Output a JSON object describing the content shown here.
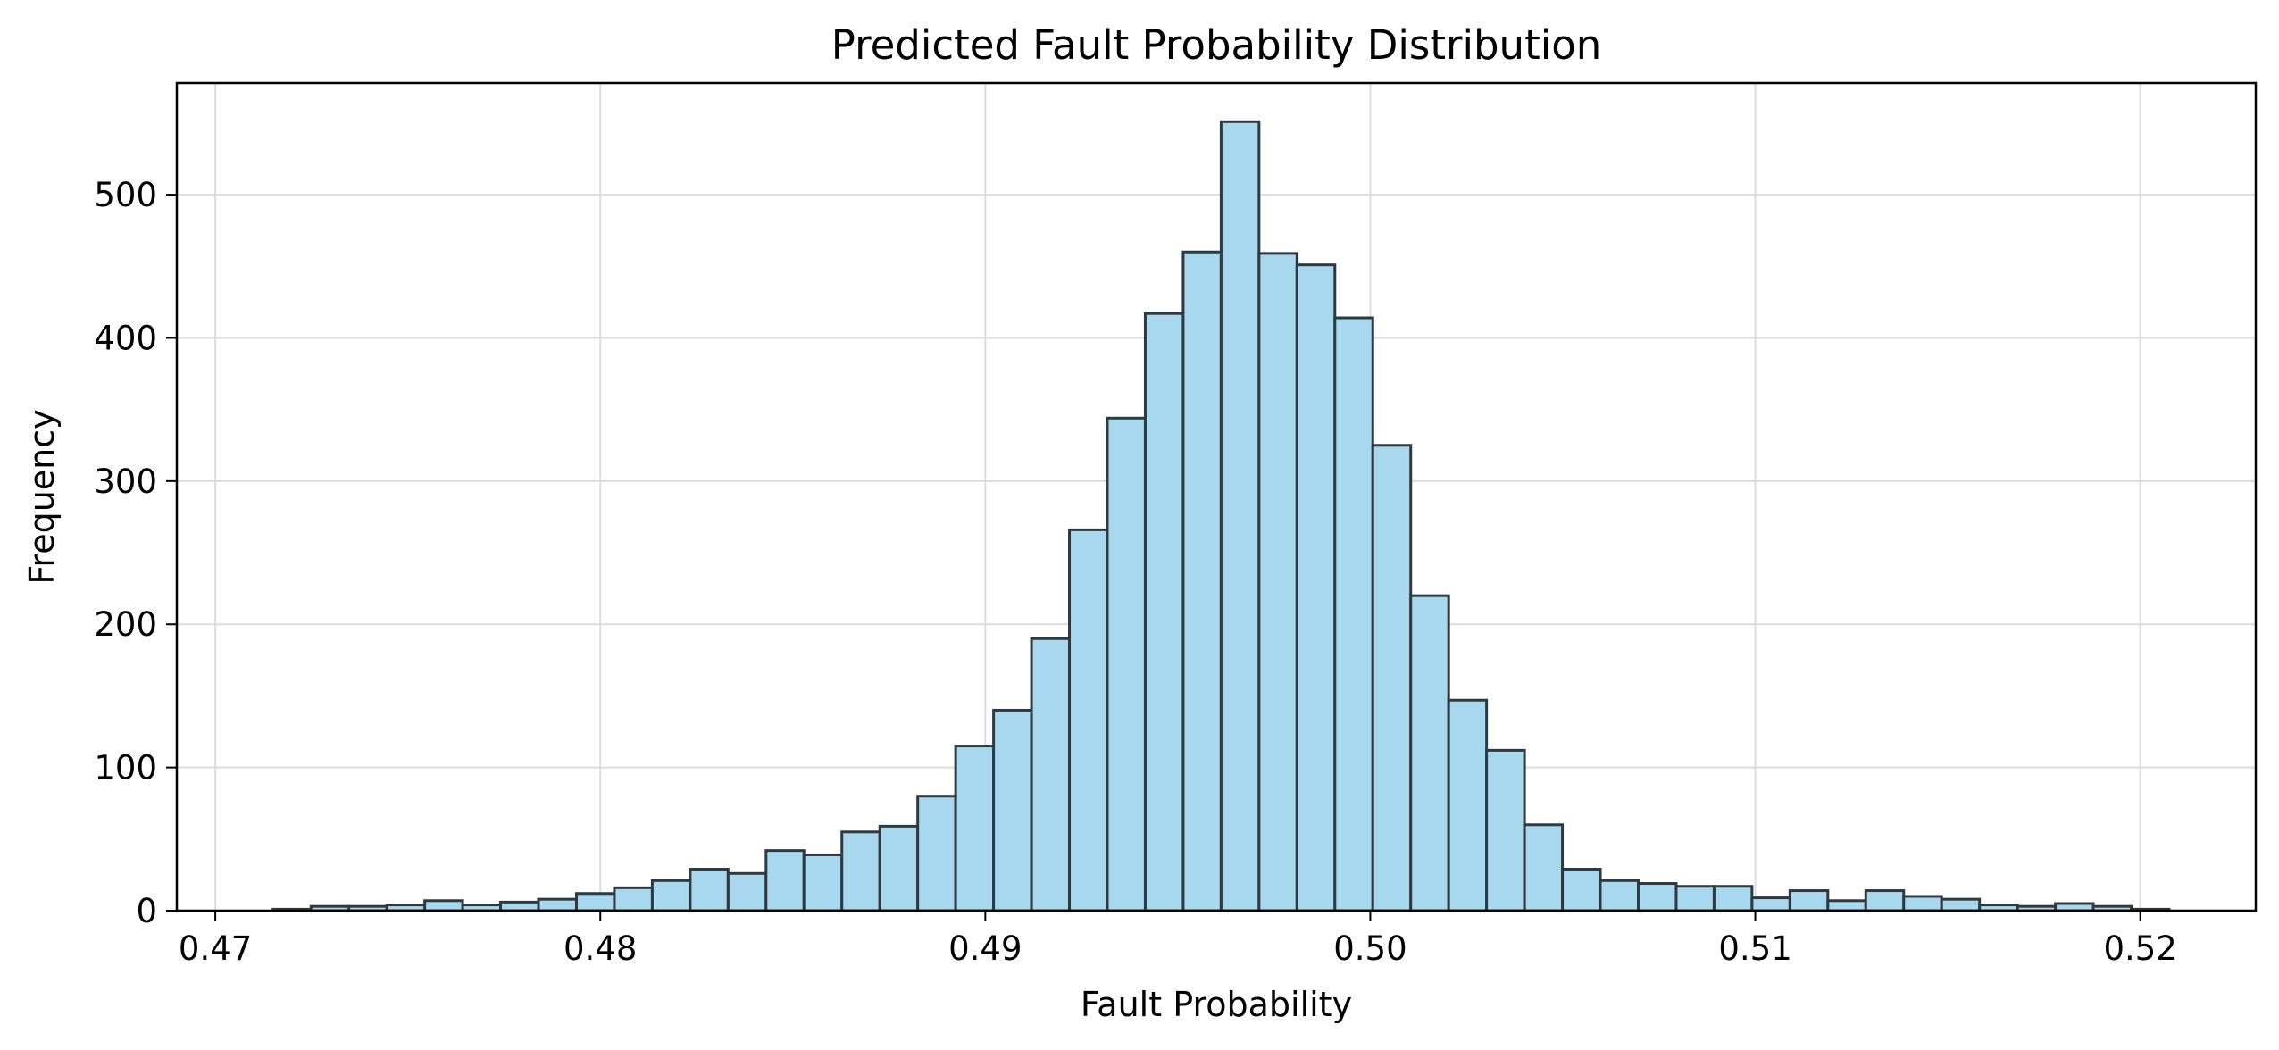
{
  "chart_data": {
    "type": "bar",
    "title": "Predicted Fault Probability Distribution",
    "xlabel": "Fault Probability",
    "ylabel": "Frequency",
    "xlim": [
      0.469,
      0.523
    ],
    "ylim": [
      0,
      578
    ],
    "x_ticks": [
      "0.47",
      "0.48",
      "0.49",
      "0.50",
      "0.51",
      "0.52"
    ],
    "y_ticks": [
      "0",
      "100",
      "200",
      "300",
      "400",
      "500"
    ],
    "grid": true,
    "bin_width": 0.000985,
    "bin_starts": [
      0.4715,
      0.472485,
      0.47347,
      0.474455,
      0.47544,
      0.476425,
      0.47741,
      0.478395,
      0.47938,
      0.480365,
      0.48135,
      0.482335,
      0.48332,
      0.484305,
      0.48529,
      0.486275,
      0.48726,
      0.488245,
      0.48923,
      0.490215,
      0.4912,
      0.492185,
      0.49317,
      0.494155,
      0.49514,
      0.496125,
      0.49711,
      0.498095,
      0.49908,
      0.500065,
      0.50105,
      0.502035,
      0.50302,
      0.504005,
      0.50499,
      0.505975,
      0.50696,
      0.507945,
      0.50893,
      0.509915,
      0.5109,
      0.511885,
      0.51287,
      0.513855,
      0.51484,
      0.515825,
      0.51681,
      0.517795,
      0.51878,
      0.519765
    ],
    "values": [
      1,
      3,
      3,
      4,
      7,
      4,
      6,
      8,
      12,
      16,
      21,
      29,
      26,
      42,
      39,
      55,
      59,
      80,
      115,
      140,
      190,
      266,
      344,
      417,
      460,
      551,
      459,
      451,
      414,
      325,
      220,
      147,
      112,
      60,
      29,
      21,
      19,
      17,
      17,
      9,
      14,
      7,
      14,
      10,
      8,
      4,
      3,
      5,
      3,
      1
    ],
    "bar_color": "#a8d8ee",
    "edge_color": "#2e3a40",
    "grid_color": "#dcdcdc"
  }
}
